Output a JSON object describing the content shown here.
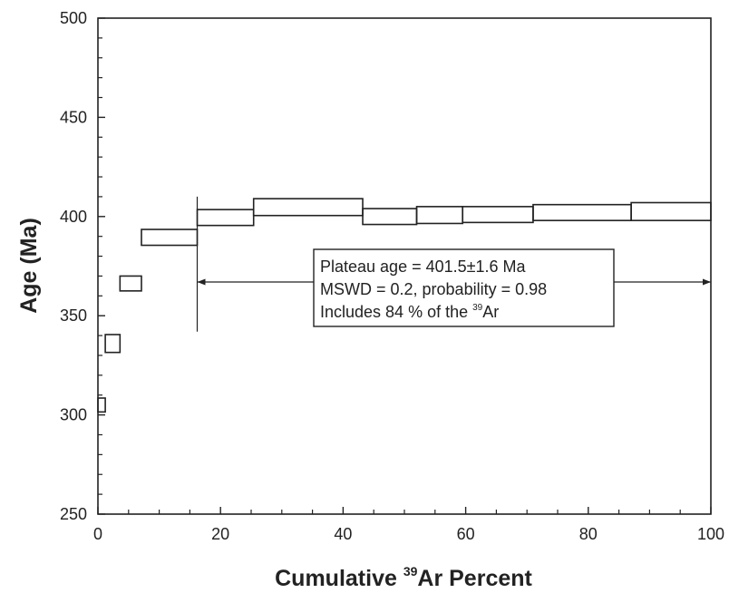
{
  "chart_data": {
    "type": "step-boxes",
    "xlabel": {
      "main": "Cumulative ",
      "sup": "39",
      "tail": "Ar Percent"
    },
    "ylabel": "Age (Ma)",
    "xlim": [
      0,
      100
    ],
    "ylim": [
      250,
      500
    ],
    "x_ticks": [
      0,
      20,
      40,
      60,
      80,
      100
    ],
    "y_ticks": [
      250,
      300,
      350,
      400,
      450,
      500
    ],
    "grid": false,
    "steps": [
      {
        "x0": 0.0,
        "x1": 1.2,
        "lo": 301.5,
        "hi": 308.5
      },
      {
        "x0": 1.2,
        "x1": 3.6,
        "lo": 331.5,
        "hi": 340.5
      },
      {
        "x0": 3.6,
        "x1": 7.1,
        "lo": 362.5,
        "hi": 370.0
      },
      {
        "x0": 7.1,
        "x1": 16.2,
        "lo": 385.5,
        "hi": 393.5
      },
      {
        "x0": 16.2,
        "x1": 25.4,
        "lo": 395.5,
        "hi": 403.5
      },
      {
        "x0": 25.4,
        "x1": 43.2,
        "lo": 400.5,
        "hi": 409.0
      },
      {
        "x0": 43.2,
        "x1": 52.0,
        "lo": 396.0,
        "hi": 404.0
      },
      {
        "x0": 52.0,
        "x1": 59.5,
        "lo": 396.5,
        "hi": 405.0
      },
      {
        "x0": 59.5,
        "x1": 71.0,
        "lo": 397.0,
        "hi": 405.0
      },
      {
        "x0": 71.0,
        "x1": 87.0,
        "lo": 398.0,
        "hi": 406.0
      },
      {
        "x0": 87.0,
        "x1": 100.0,
        "lo": 398.0,
        "hi": 407.0
      }
    ],
    "plateau": {
      "x_start": 16.2,
      "x_end": 100,
      "y": 367,
      "marker_lo": 342,
      "marker_hi": 410
    },
    "annotation": {
      "line1": "Plateau age = 401.5±1.6 Ma",
      "line2": "MSWD = 0.2, probability = 0.98",
      "line3_pre": "Includes 84 % of the ",
      "line3_sup": "39",
      "line3_post": "Ar"
    }
  }
}
